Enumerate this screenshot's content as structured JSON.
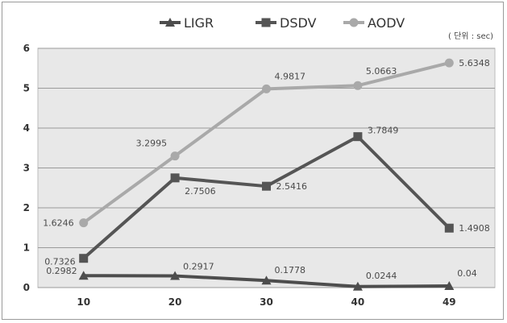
{
  "chart_data": {
    "type": "line",
    "categories": [
      "10",
      "20",
      "30",
      "40",
      "49"
    ],
    "series": [
      {
        "name": "LIGR",
        "values": [
          0.2982,
          0.2917,
          0.1778,
          0.0244,
          0.04
        ],
        "labels": [
          "0.2982",
          "0.2917",
          "0.1778",
          "0.0244",
          "0.04"
        ],
        "color": "#4d4d4d",
        "marker": "triangle"
      },
      {
        "name": "DSDV",
        "values": [
          0.7326,
          2.7506,
          2.5416,
          3.7849,
          1.4908
        ],
        "labels": [
          "0.7326",
          "2.7506",
          "2.5416",
          "3.7849",
          "1.4908"
        ],
        "color": "#555555",
        "marker": "square"
      },
      {
        "name": "AODV",
        "values": [
          1.6246,
          3.2995,
          4.9817,
          5.0663,
          5.6348
        ],
        "labels": [
          "1.6246",
          "3.2995",
          "4.9817",
          "5.0663",
          "5.6348"
        ],
        "color": "#a9a9a9",
        "marker": "circle"
      }
    ],
    "ylim": [
      0,
      6
    ],
    "yticks": [
      "0",
      "1",
      "2",
      "3",
      "4",
      "5",
      "6"
    ],
    "grid": true,
    "legend_position": "top",
    "unit_note": "( 단위 : sec)",
    "plot_background": "#e8e8e8"
  }
}
